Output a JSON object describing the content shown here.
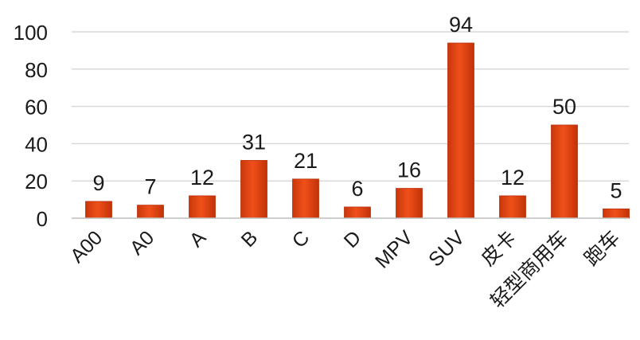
{
  "chart_data": {
    "type": "bar",
    "categories": [
      "A00",
      "A0",
      "A",
      "B",
      "C",
      "D",
      "MPV",
      "SUV",
      "皮卡",
      "轻型商用车",
      "跑车"
    ],
    "values": [
      9,
      7,
      12,
      31,
      21,
      6,
      16,
      94,
      12,
      50,
      5
    ],
    "ylim": [
      0,
      100
    ],
    "yticks": [
      0,
      20,
      40,
      60,
      80,
      100
    ],
    "grid": true,
    "legend": "none",
    "data_labels": true,
    "colors": {
      "bar": "#e8440f",
      "bar_dark": "#b8300a",
      "grid": "#d9d9d9",
      "axis": "#bfbfbf"
    }
  }
}
